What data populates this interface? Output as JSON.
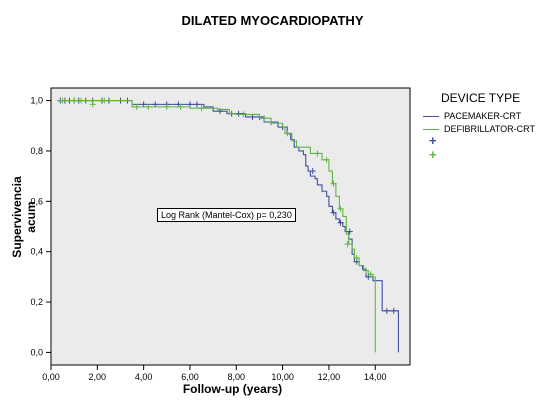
{
  "chart_data": {
    "type": "line",
    "subtype": "kaplan-meier",
    "title": "DILATED MYOCARDIOPATHY",
    "xlabel": "Follow-up (years)",
    "ylabel": "Supervivencia acum",
    "xlim": [
      0,
      15.5
    ],
    "ylim": [
      -0.05,
      1.05
    ],
    "xticks": [
      "0,00",
      "2,00",
      "4,00",
      "6,00",
      "8,00",
      "10,00",
      "12,00",
      "14,00"
    ],
    "xtick_values": [
      0,
      2,
      4,
      6,
      8,
      10,
      12,
      14
    ],
    "yticks": [
      "0,0",
      "0,2",
      "0,4",
      "0,6",
      "0,8",
      "1,0"
    ],
    "ytick_values": [
      0,
      0.2,
      0.4,
      0.6,
      0.8,
      1.0
    ],
    "grid": false,
    "plot_background": "#ebebeb",
    "legend": {
      "title": "DEVICE TYPE",
      "placement": "right",
      "entries": [
        "PACEMAKER-CRT",
        "DEFIBRILLATOR-CRT"
      ]
    },
    "annotation": "Log Rank (Mantel-Cox) p= 0,230",
    "series": [
      {
        "name": "PACEMAKER-CRT",
        "color": "#3f4ea3",
        "steps": [
          [
            0.3,
            1.0
          ],
          [
            3.5,
            0.985
          ],
          [
            6.6,
            0.975
          ],
          [
            7.0,
            0.958
          ],
          [
            7.6,
            0.948
          ],
          [
            8.4,
            0.935
          ],
          [
            9.2,
            0.915
          ],
          [
            9.8,
            0.895
          ],
          [
            10.2,
            0.868
          ],
          [
            10.35,
            0.845
          ],
          [
            10.5,
            0.815
          ],
          [
            10.7,
            0.8
          ],
          [
            10.9,
            0.785
          ],
          [
            11.0,
            0.74
          ],
          [
            11.1,
            0.72
          ],
          [
            11.2,
            0.7
          ],
          [
            11.4,
            0.69
          ],
          [
            11.5,
            0.665
          ],
          [
            11.7,
            0.64
          ],
          [
            11.9,
            0.62
          ],
          [
            12.0,
            0.58
          ],
          [
            12.15,
            0.555
          ],
          [
            12.3,
            0.53
          ],
          [
            12.45,
            0.515
          ],
          [
            12.6,
            0.5
          ],
          [
            12.7,
            0.48
          ],
          [
            12.85,
            0.45
          ],
          [
            13.0,
            0.39
          ],
          [
            13.1,
            0.36
          ],
          [
            13.3,
            0.345
          ],
          [
            13.45,
            0.33
          ],
          [
            13.6,
            0.3
          ],
          [
            13.9,
            0.285
          ],
          [
            14.3,
            0.165
          ],
          [
            15.0,
            0.0
          ]
        ],
        "censored": [
          [
            0.4,
            1.0
          ],
          [
            0.6,
            1.0
          ],
          [
            0.8,
            1.0
          ],
          [
            1.0,
            1.0
          ],
          [
            1.2,
            1.0
          ],
          [
            1.5,
            1.0
          ],
          [
            1.8,
            1.0
          ],
          [
            2.2,
            1.0
          ],
          [
            2.5,
            1.0
          ],
          [
            3.0,
            1.0
          ],
          [
            3.3,
            1.0
          ],
          [
            4.0,
            0.985
          ],
          [
            4.5,
            0.985
          ],
          [
            5.0,
            0.985
          ],
          [
            5.5,
            0.985
          ],
          [
            6.0,
            0.985
          ],
          [
            6.3,
            0.985
          ],
          [
            7.3,
            0.958
          ],
          [
            7.8,
            0.948
          ],
          [
            8.1,
            0.948
          ],
          [
            8.7,
            0.935
          ],
          [
            9.0,
            0.935
          ],
          [
            9.5,
            0.915
          ],
          [
            10.0,
            0.895
          ],
          [
            11.3,
            0.72
          ],
          [
            12.2,
            0.555
          ],
          [
            12.5,
            0.515
          ],
          [
            12.9,
            0.48
          ],
          [
            13.2,
            0.36
          ],
          [
            13.7,
            0.3
          ],
          [
            14.5,
            0.165
          ],
          [
            14.8,
            0.165
          ]
        ]
      },
      {
        "name": "DEFIBRILLATOR-CRT",
        "color": "#5fb446",
        "steps": [
          [
            0.3,
            1.0
          ],
          [
            3.5,
            0.975
          ],
          [
            6.0,
            0.97
          ],
          [
            7.2,
            0.965
          ],
          [
            7.7,
            0.948
          ],
          [
            8.0,
            0.945
          ],
          [
            9.0,
            0.93
          ],
          [
            9.5,
            0.91
          ],
          [
            10.0,
            0.895
          ],
          [
            10.1,
            0.87
          ],
          [
            10.4,
            0.84
          ],
          [
            10.6,
            0.815
          ],
          [
            11.2,
            0.79
          ],
          [
            11.7,
            0.765
          ],
          [
            12.0,
            0.72
          ],
          [
            12.15,
            0.67
          ],
          [
            12.3,
            0.62
          ],
          [
            12.45,
            0.57
          ],
          [
            12.6,
            0.54
          ],
          [
            12.75,
            0.47
          ],
          [
            12.85,
            0.43
          ],
          [
            13.0,
            0.41
          ],
          [
            13.1,
            0.375
          ],
          [
            13.3,
            0.345
          ],
          [
            13.5,
            0.325
          ],
          [
            13.7,
            0.31
          ],
          [
            13.9,
            0.3
          ],
          [
            14.0,
            0.0
          ]
        ],
        "censored": [
          [
            0.5,
            1.0
          ],
          [
            1.0,
            1.0
          ],
          [
            1.3,
            1.0
          ],
          [
            1.8,
            0.985
          ],
          [
            2.3,
            1.0
          ],
          [
            3.7,
            0.975
          ],
          [
            4.2,
            0.975
          ],
          [
            5.0,
            0.975
          ],
          [
            5.6,
            0.975
          ],
          [
            6.5,
            0.97
          ],
          [
            8.3,
            0.945
          ],
          [
            9.2,
            0.93
          ],
          [
            10.2,
            0.87
          ],
          [
            11.5,
            0.79
          ],
          [
            11.9,
            0.765
          ],
          [
            12.2,
            0.67
          ],
          [
            12.5,
            0.57
          ],
          [
            12.8,
            0.43
          ],
          [
            13.2,
            0.375
          ],
          [
            13.6,
            0.325
          ],
          [
            13.8,
            0.31
          ]
        ]
      }
    ]
  }
}
